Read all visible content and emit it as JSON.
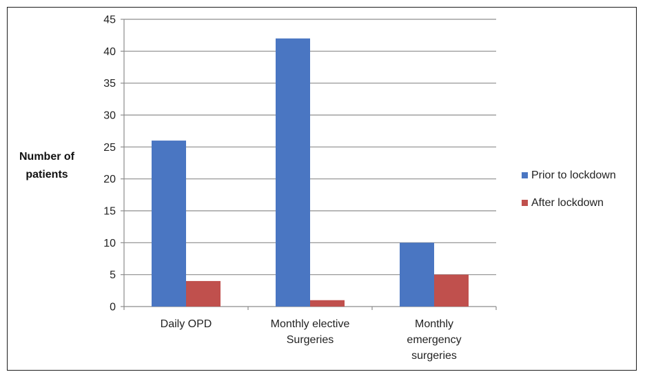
{
  "chart_data": {
    "type": "bar",
    "categories": [
      [
        "Daily OPD"
      ],
      [
        "Monthly elective",
        "Surgeries"
      ],
      [
        "Monthly",
        "emergency",
        "surgeries"
      ]
    ],
    "series": [
      {
        "name": "Prior to lockdown",
        "values": [
          26,
          42,
          10
        ],
        "color": "#4a76c2"
      },
      {
        "name": "After lockdown",
        "values": [
          4,
          1,
          5
        ],
        "color": "#c0504d"
      }
    ],
    "ylabel": [
      "Number of",
      "patients"
    ],
    "ylim": [
      0,
      45
    ],
    "yticks": [
      0,
      5,
      10,
      15,
      20,
      25,
      30,
      35,
      40,
      45
    ],
    "grid": true,
    "legend_position": "right"
  }
}
